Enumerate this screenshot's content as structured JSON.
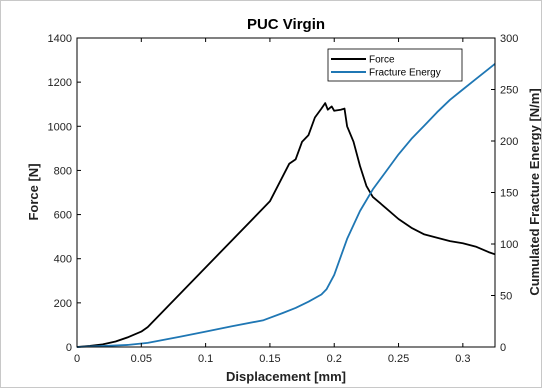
{
  "chart_data": {
    "type": "line",
    "title": "PUC Virgin",
    "xlabel": "Displacement [mm]",
    "ylabel_left": "Force [N]",
    "ylabel_right": "Cumulated Fracture Energy [N/m]",
    "xlim": [
      0,
      0.325
    ],
    "ylim_left": [
      0,
      1400
    ],
    "ylim_right": [
      0,
      300
    ],
    "x_ticks": [
      0,
      0.05,
      0.1,
      0.15,
      0.2,
      0.25,
      0.3
    ],
    "x_tick_labels": [
      "0",
      "0.05",
      "0.1",
      "0.15",
      "0.2",
      "0.25",
      "0.3"
    ],
    "y_left_ticks": [
      0,
      200,
      400,
      600,
      800,
      1000,
      1200,
      1400
    ],
    "y_left_tick_labels": [
      "0",
      "200",
      "400",
      "600",
      "800",
      "1000",
      "1200",
      "1400"
    ],
    "y_right_ticks": [
      0,
      50,
      100,
      150,
      200,
      250,
      300
    ],
    "y_right_tick_labels": [
      "0",
      "50",
      "100",
      "150",
      "200",
      "250",
      "300"
    ],
    "legend_position": "top-right",
    "grid": false,
    "series": [
      {
        "name": "Force",
        "axis": "left",
        "color": "#000000",
        "x": [
          0,
          0.01,
          0.02,
          0.03,
          0.04,
          0.05,
          0.055,
          0.1,
          0.145,
          0.15,
          0.165,
          0.17,
          0.175,
          0.18,
          0.185,
          0.19,
          0.193,
          0.195,
          0.198,
          0.2,
          0.205,
          0.208,
          0.21,
          0.215,
          0.22,
          0.225,
          0.23,
          0.24,
          0.25,
          0.26,
          0.27,
          0.28,
          0.29,
          0.3,
          0.31,
          0.32,
          0.325
        ],
        "y": [
          0,
          5,
          12,
          25,
          45,
          70,
          90,
          360,
          630,
          660,
          830,
          850,
          930,
          960,
          1040,
          1080,
          1105,
          1075,
          1090,
          1070,
          1075,
          1080,
          1000,
          930,
          820,
          730,
          680,
          630,
          580,
          540,
          510,
          495,
          480,
          470,
          455,
          430,
          420
        ]
      },
      {
        "name": "Fracture Energy",
        "axis": "right",
        "color": "#1f77b4",
        "x": [
          0,
          0.02,
          0.04,
          0.055,
          0.08,
          0.1,
          0.12,
          0.145,
          0.16,
          0.17,
          0.18,
          0.19,
          0.194,
          0.2,
          0.21,
          0.22,
          0.23,
          0.24,
          0.25,
          0.26,
          0.27,
          0.28,
          0.29,
          0.3,
          0.31,
          0.32,
          0.325
        ],
        "y": [
          0,
          1,
          2,
          4,
          10,
          15,
          20,
          26,
          33,
          38,
          44,
          51,
          56,
          70,
          105,
          132,
          153,
          170,
          187,
          202,
          215,
          228,
          240,
          250,
          260,
          270,
          275
        ]
      }
    ]
  }
}
